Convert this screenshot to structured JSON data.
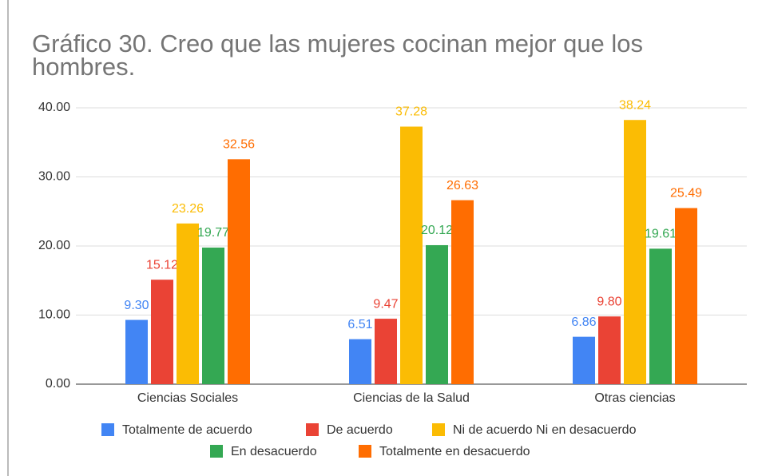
{
  "chart_data": {
    "type": "bar",
    "title": "Gráfico 30. Creo que las mujeres cocinan mejor que los hombres.",
    "categories": [
      "Ciencias Sociales",
      "Ciencias de la Salud",
      "Otras ciencias"
    ],
    "series": [
      {
        "name": "Totalmente de acuerdo",
        "color": "#4285f4",
        "values": [
          9.3,
          6.51,
          6.86
        ],
        "value_labels": [
          "9.30",
          "6.51",
          "6.86"
        ]
      },
      {
        "name": "De acuerdo",
        "color": "#ea4335",
        "values": [
          15.12,
          9.47,
          9.8
        ],
        "value_labels": [
          "15.12",
          "9.47",
          "9.80"
        ]
      },
      {
        "name": "Ni de acuerdo Ni en desacuerdo",
        "color": "#fbbc04",
        "values": [
          23.26,
          37.28,
          38.24
        ],
        "value_labels": [
          "23.26",
          "37.28",
          "38.24"
        ]
      },
      {
        "name": "En desacuerdo",
        "color": "#34a853",
        "values": [
          19.77,
          20.12,
          19.61
        ],
        "value_labels": [
          "19.77",
          "20.12",
          "19.61"
        ]
      },
      {
        "name": "Totalmente en desacuerdo",
        "color": "#ff6d01",
        "values": [
          32.56,
          26.63,
          25.49
        ],
        "value_labels": [
          "32.56",
          "26.63",
          "25.49"
        ]
      }
    ],
    "ylim": [
      0,
      40
    ],
    "yticks": [
      {
        "value": 0,
        "label": "0.00"
      },
      {
        "value": 10,
        "label": "10.00"
      },
      {
        "value": 20,
        "label": "20.00"
      },
      {
        "value": 30,
        "label": "30.00"
      },
      {
        "value": 40,
        "label": "40.00"
      }
    ],
    "grid": true,
    "legend": "bottom"
  }
}
